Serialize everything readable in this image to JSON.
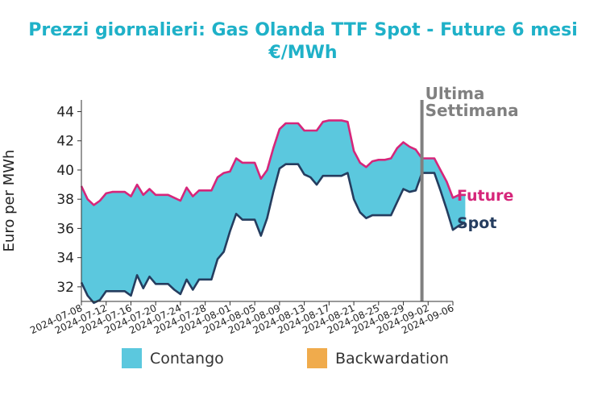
{
  "title_line1": "Prezzi giornalieri: Gas Olanda TTF Spot - Future 6 mesi",
  "title_line2": "€/MWh",
  "legend": {
    "contango_label": "Contango",
    "backwardation_label": "Backwardation",
    "contango_color": "#5bc8de",
    "backwardation_color": "#f0ab4c"
  },
  "chart_data": {
    "type": "area",
    "ylabel": "Euro per MWh",
    "ylim": [
      31,
      44.8
    ],
    "y_ticks": [
      32,
      34,
      36,
      38,
      40,
      42,
      44
    ],
    "x_range": [
      "2024-07-08",
      "2024-09-06"
    ],
    "x_ticks": [
      "2024-07-08",
      "2024-07-12",
      "2024-07-16",
      "2024-07-20",
      "2024-07-24",
      "2024-07-28",
      "2024-08-01",
      "2024-08-05",
      "2024-08-09",
      "2024-08-13",
      "2024-08-17",
      "2024-08-21",
      "2024-08-25",
      "2024-08-29",
      "2024-09-02",
      "2024-09-06"
    ],
    "marker": {
      "date": "2024-09-01",
      "label_line1": "Ultima",
      "label_line2": "Settimana",
      "color": "#808080"
    },
    "series": [
      {
        "name": "Future",
        "color": "#d6267a",
        "points": [
          [
            "2024-07-08",
            38.9
          ],
          [
            "2024-07-09",
            38.0
          ],
          [
            "2024-07-10",
            37.6
          ],
          [
            "2024-07-11",
            37.9
          ],
          [
            "2024-07-12",
            38.4
          ],
          [
            "2024-07-13",
            38.5
          ],
          [
            "2024-07-14",
            38.5
          ],
          [
            "2024-07-15",
            38.5
          ],
          [
            "2024-07-16",
            38.2
          ],
          [
            "2024-07-17",
            39.0
          ],
          [
            "2024-07-18",
            38.3
          ],
          [
            "2024-07-19",
            38.7
          ],
          [
            "2024-07-20",
            38.3
          ],
          [
            "2024-07-21",
            38.3
          ],
          [
            "2024-07-22",
            38.3
          ],
          [
            "2024-07-23",
            38.1
          ],
          [
            "2024-07-24",
            37.9
          ],
          [
            "2024-07-25",
            38.8
          ],
          [
            "2024-07-26",
            38.2
          ],
          [
            "2024-07-27",
            38.6
          ],
          [
            "2024-07-28",
            38.6
          ],
          [
            "2024-07-29",
            38.6
          ],
          [
            "2024-07-30",
            39.5
          ],
          [
            "2024-07-31",
            39.8
          ],
          [
            "2024-08-01",
            39.9
          ],
          [
            "2024-08-02",
            40.8
          ],
          [
            "2024-08-03",
            40.5
          ],
          [
            "2024-08-04",
            40.5
          ],
          [
            "2024-08-05",
            40.5
          ],
          [
            "2024-08-06",
            39.4
          ],
          [
            "2024-08-07",
            40.0
          ],
          [
            "2024-08-08",
            41.5
          ],
          [
            "2024-08-09",
            42.8
          ],
          [
            "2024-08-10",
            43.2
          ],
          [
            "2024-08-11",
            43.2
          ],
          [
            "2024-08-12",
            43.2
          ],
          [
            "2024-08-13",
            42.7
          ],
          [
            "2024-08-14",
            42.7
          ],
          [
            "2024-08-15",
            42.7
          ],
          [
            "2024-08-16",
            43.3
          ],
          [
            "2024-08-17",
            43.4
          ],
          [
            "2024-08-18",
            43.4
          ],
          [
            "2024-08-19",
            43.4
          ],
          [
            "2024-08-20",
            43.3
          ],
          [
            "2024-08-21",
            41.3
          ],
          [
            "2024-08-22",
            40.5
          ],
          [
            "2024-08-23",
            40.2
          ],
          [
            "2024-08-24",
            40.6
          ],
          [
            "2024-08-25",
            40.7
          ],
          [
            "2024-08-26",
            40.7
          ],
          [
            "2024-08-27",
            40.8
          ],
          [
            "2024-08-28",
            41.5
          ],
          [
            "2024-08-29",
            41.9
          ],
          [
            "2024-08-30",
            41.6
          ],
          [
            "2024-08-31",
            41.4
          ],
          [
            "2024-09-01",
            40.8
          ],
          [
            "2024-09-02",
            40.8
          ],
          [
            "2024-09-03",
            40.8
          ],
          [
            "2024-09-04",
            40.0
          ],
          [
            "2024-09-05",
            39.2
          ],
          [
            "2024-09-06",
            38.1
          ],
          [
            "2024-09-07",
            38.3
          ],
          [
            "2024-09-08",
            38.3
          ]
        ]
      },
      {
        "name": "Spot",
        "color": "#253d5f",
        "points": [
          [
            "2024-07-08",
            32.3
          ],
          [
            "2024-07-09",
            31.4
          ],
          [
            "2024-07-10",
            30.9
          ],
          [
            "2024-07-11",
            31.1
          ],
          [
            "2024-07-12",
            31.7
          ],
          [
            "2024-07-13",
            31.7
          ],
          [
            "2024-07-14",
            31.7
          ],
          [
            "2024-07-15",
            31.7
          ],
          [
            "2024-07-16",
            31.4
          ],
          [
            "2024-07-17",
            32.8
          ],
          [
            "2024-07-18",
            31.9
          ],
          [
            "2024-07-19",
            32.7
          ],
          [
            "2024-07-20",
            32.2
          ],
          [
            "2024-07-21",
            32.2
          ],
          [
            "2024-07-22",
            32.2
          ],
          [
            "2024-07-23",
            31.8
          ],
          [
            "2024-07-24",
            31.5
          ],
          [
            "2024-07-25",
            32.5
          ],
          [
            "2024-07-26",
            31.8
          ],
          [
            "2024-07-27",
            32.5
          ],
          [
            "2024-07-28",
            32.5
          ],
          [
            "2024-07-29",
            32.5
          ],
          [
            "2024-07-30",
            33.9
          ],
          [
            "2024-07-31",
            34.4
          ],
          [
            "2024-08-01",
            35.8
          ],
          [
            "2024-08-02",
            37.0
          ],
          [
            "2024-08-03",
            36.6
          ],
          [
            "2024-08-04",
            36.6
          ],
          [
            "2024-08-05",
            36.6
          ],
          [
            "2024-08-06",
            35.5
          ],
          [
            "2024-08-07",
            36.7
          ],
          [
            "2024-08-08",
            38.5
          ],
          [
            "2024-08-09",
            40.1
          ],
          [
            "2024-08-10",
            40.4
          ],
          [
            "2024-08-11",
            40.4
          ],
          [
            "2024-08-12",
            40.4
          ],
          [
            "2024-08-13",
            39.7
          ],
          [
            "2024-08-14",
            39.5
          ],
          [
            "2024-08-15",
            39.0
          ],
          [
            "2024-08-16",
            39.6
          ],
          [
            "2024-08-17",
            39.6
          ],
          [
            "2024-08-18",
            39.6
          ],
          [
            "2024-08-19",
            39.6
          ],
          [
            "2024-08-20",
            39.8
          ],
          [
            "2024-08-21",
            38.0
          ],
          [
            "2024-08-22",
            37.1
          ],
          [
            "2024-08-23",
            36.7
          ],
          [
            "2024-08-24",
            36.9
          ],
          [
            "2024-08-25",
            36.9
          ],
          [
            "2024-08-26",
            36.9
          ],
          [
            "2024-08-27",
            36.9
          ],
          [
            "2024-08-28",
            37.8
          ],
          [
            "2024-08-29",
            38.7
          ],
          [
            "2024-08-30",
            38.5
          ],
          [
            "2024-08-31",
            38.6
          ],
          [
            "2024-09-01",
            39.8
          ],
          [
            "2024-09-02",
            39.8
          ],
          [
            "2024-09-03",
            39.8
          ],
          [
            "2024-09-04",
            38.6
          ],
          [
            "2024-09-05",
            37.3
          ],
          [
            "2024-09-06",
            35.9
          ],
          [
            "2024-09-07",
            36.2
          ],
          [
            "2024-09-08",
            36.4
          ]
        ]
      }
    ]
  }
}
